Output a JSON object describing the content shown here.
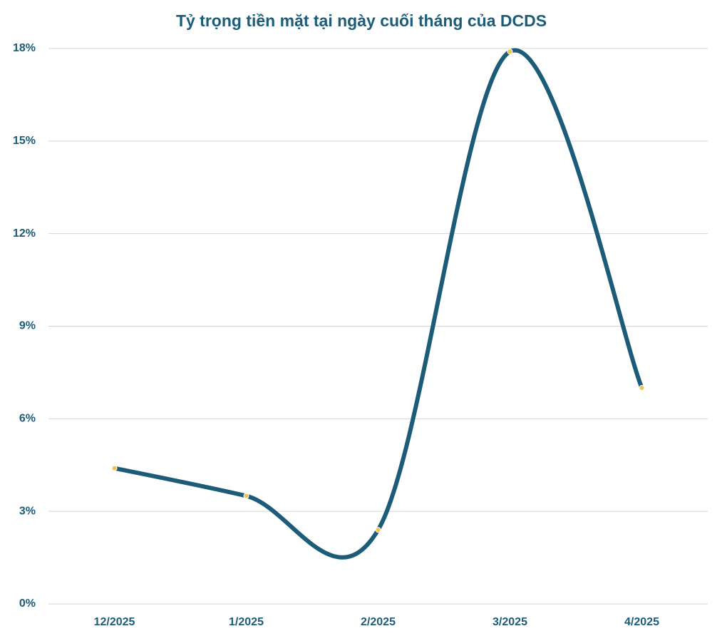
{
  "chart_data": {
    "type": "line",
    "title": "Tỷ trọng tiền mặt tại ngày cuối tháng của DCDS",
    "categories": [
      "12/2025",
      "1/2025",
      "2/2025",
      "3/2025",
      "4/2025"
    ],
    "series": [
      {
        "name": "Tỷ trọng tiền mặt",
        "color": "#1d5c78",
        "values": [
          4.4,
          3.5,
          2.4,
          17.9,
          7.0
        ]
      }
    ],
    "marker_color": "#f2c14e",
    "smooth": true,
    "ylim": [
      0,
      18
    ],
    "yticks": [
      {
        "value": 0,
        "label": "0%"
      },
      {
        "value": 3,
        "label": "3%"
      },
      {
        "value": 6,
        "label": "6%"
      },
      {
        "value": 9,
        "label": "9%"
      },
      {
        "value": 12,
        "label": "12%"
      },
      {
        "value": 15,
        "label": "15%"
      },
      {
        "value": 18,
        "label": "18%"
      }
    ],
    "grid": true
  }
}
